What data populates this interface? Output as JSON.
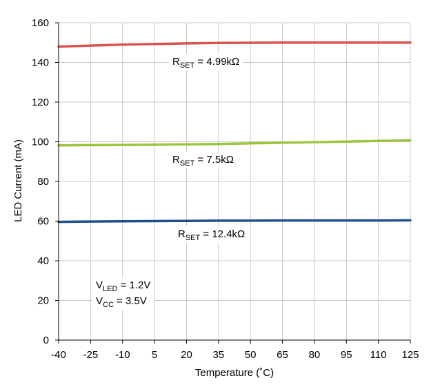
{
  "chart_data": {
    "type": "line",
    "title": "",
    "xlabel": "Temperature (˚C)",
    "ylabel": "LED Current (mA)",
    "xlim": [
      -40,
      125
    ],
    "ylim": [
      0,
      160
    ],
    "x_ticks": [
      -40,
      -25,
      -10,
      5,
      20,
      35,
      50,
      65,
      80,
      95,
      110,
      125
    ],
    "y_ticks": [
      0,
      20,
      40,
      60,
      80,
      100,
      120,
      140,
      160
    ],
    "grid": true,
    "x": [
      -40,
      -25,
      -10,
      5,
      20,
      35,
      50,
      65,
      80,
      95,
      110,
      125
    ],
    "series": [
      {
        "name": "RSET = 4.99kΩ",
        "label_main": "R",
        "label_sub": "SET",
        "label_rest": " = 4.99kΩ",
        "color": "#d9534f",
        "values": [
          148.0,
          148.5,
          149.0,
          149.3,
          149.6,
          149.8,
          149.9,
          150.0,
          150.0,
          150.0,
          150.0,
          150.0
        ]
      },
      {
        "name": "RSET = 7.5kΩ",
        "label_main": "R",
        "label_sub": "SET",
        "label_rest": " = 7.5kΩ",
        "color": "#9bc53d",
        "values": [
          98.2,
          98.3,
          98.4,
          98.5,
          98.7,
          98.9,
          99.2,
          99.5,
          99.8,
          100.1,
          100.4,
          100.7
        ]
      },
      {
        "name": "RSET = 12.4kΩ",
        "label_main": "R",
        "label_sub": "SET",
        "label_rest": " = 12.4kΩ",
        "color": "#1f4e8c",
        "values": [
          59.6,
          59.8,
          59.9,
          60.0,
          60.1,
          60.2,
          60.2,
          60.3,
          60.3,
          60.3,
          60.3,
          60.4
        ]
      }
    ],
    "annotations": [
      {
        "main": "V",
        "sub": "LED",
        "rest": " = 1.2V"
      },
      {
        "main": "V",
        "sub": "CC",
        "rest": " = 3.5V"
      }
    ]
  }
}
